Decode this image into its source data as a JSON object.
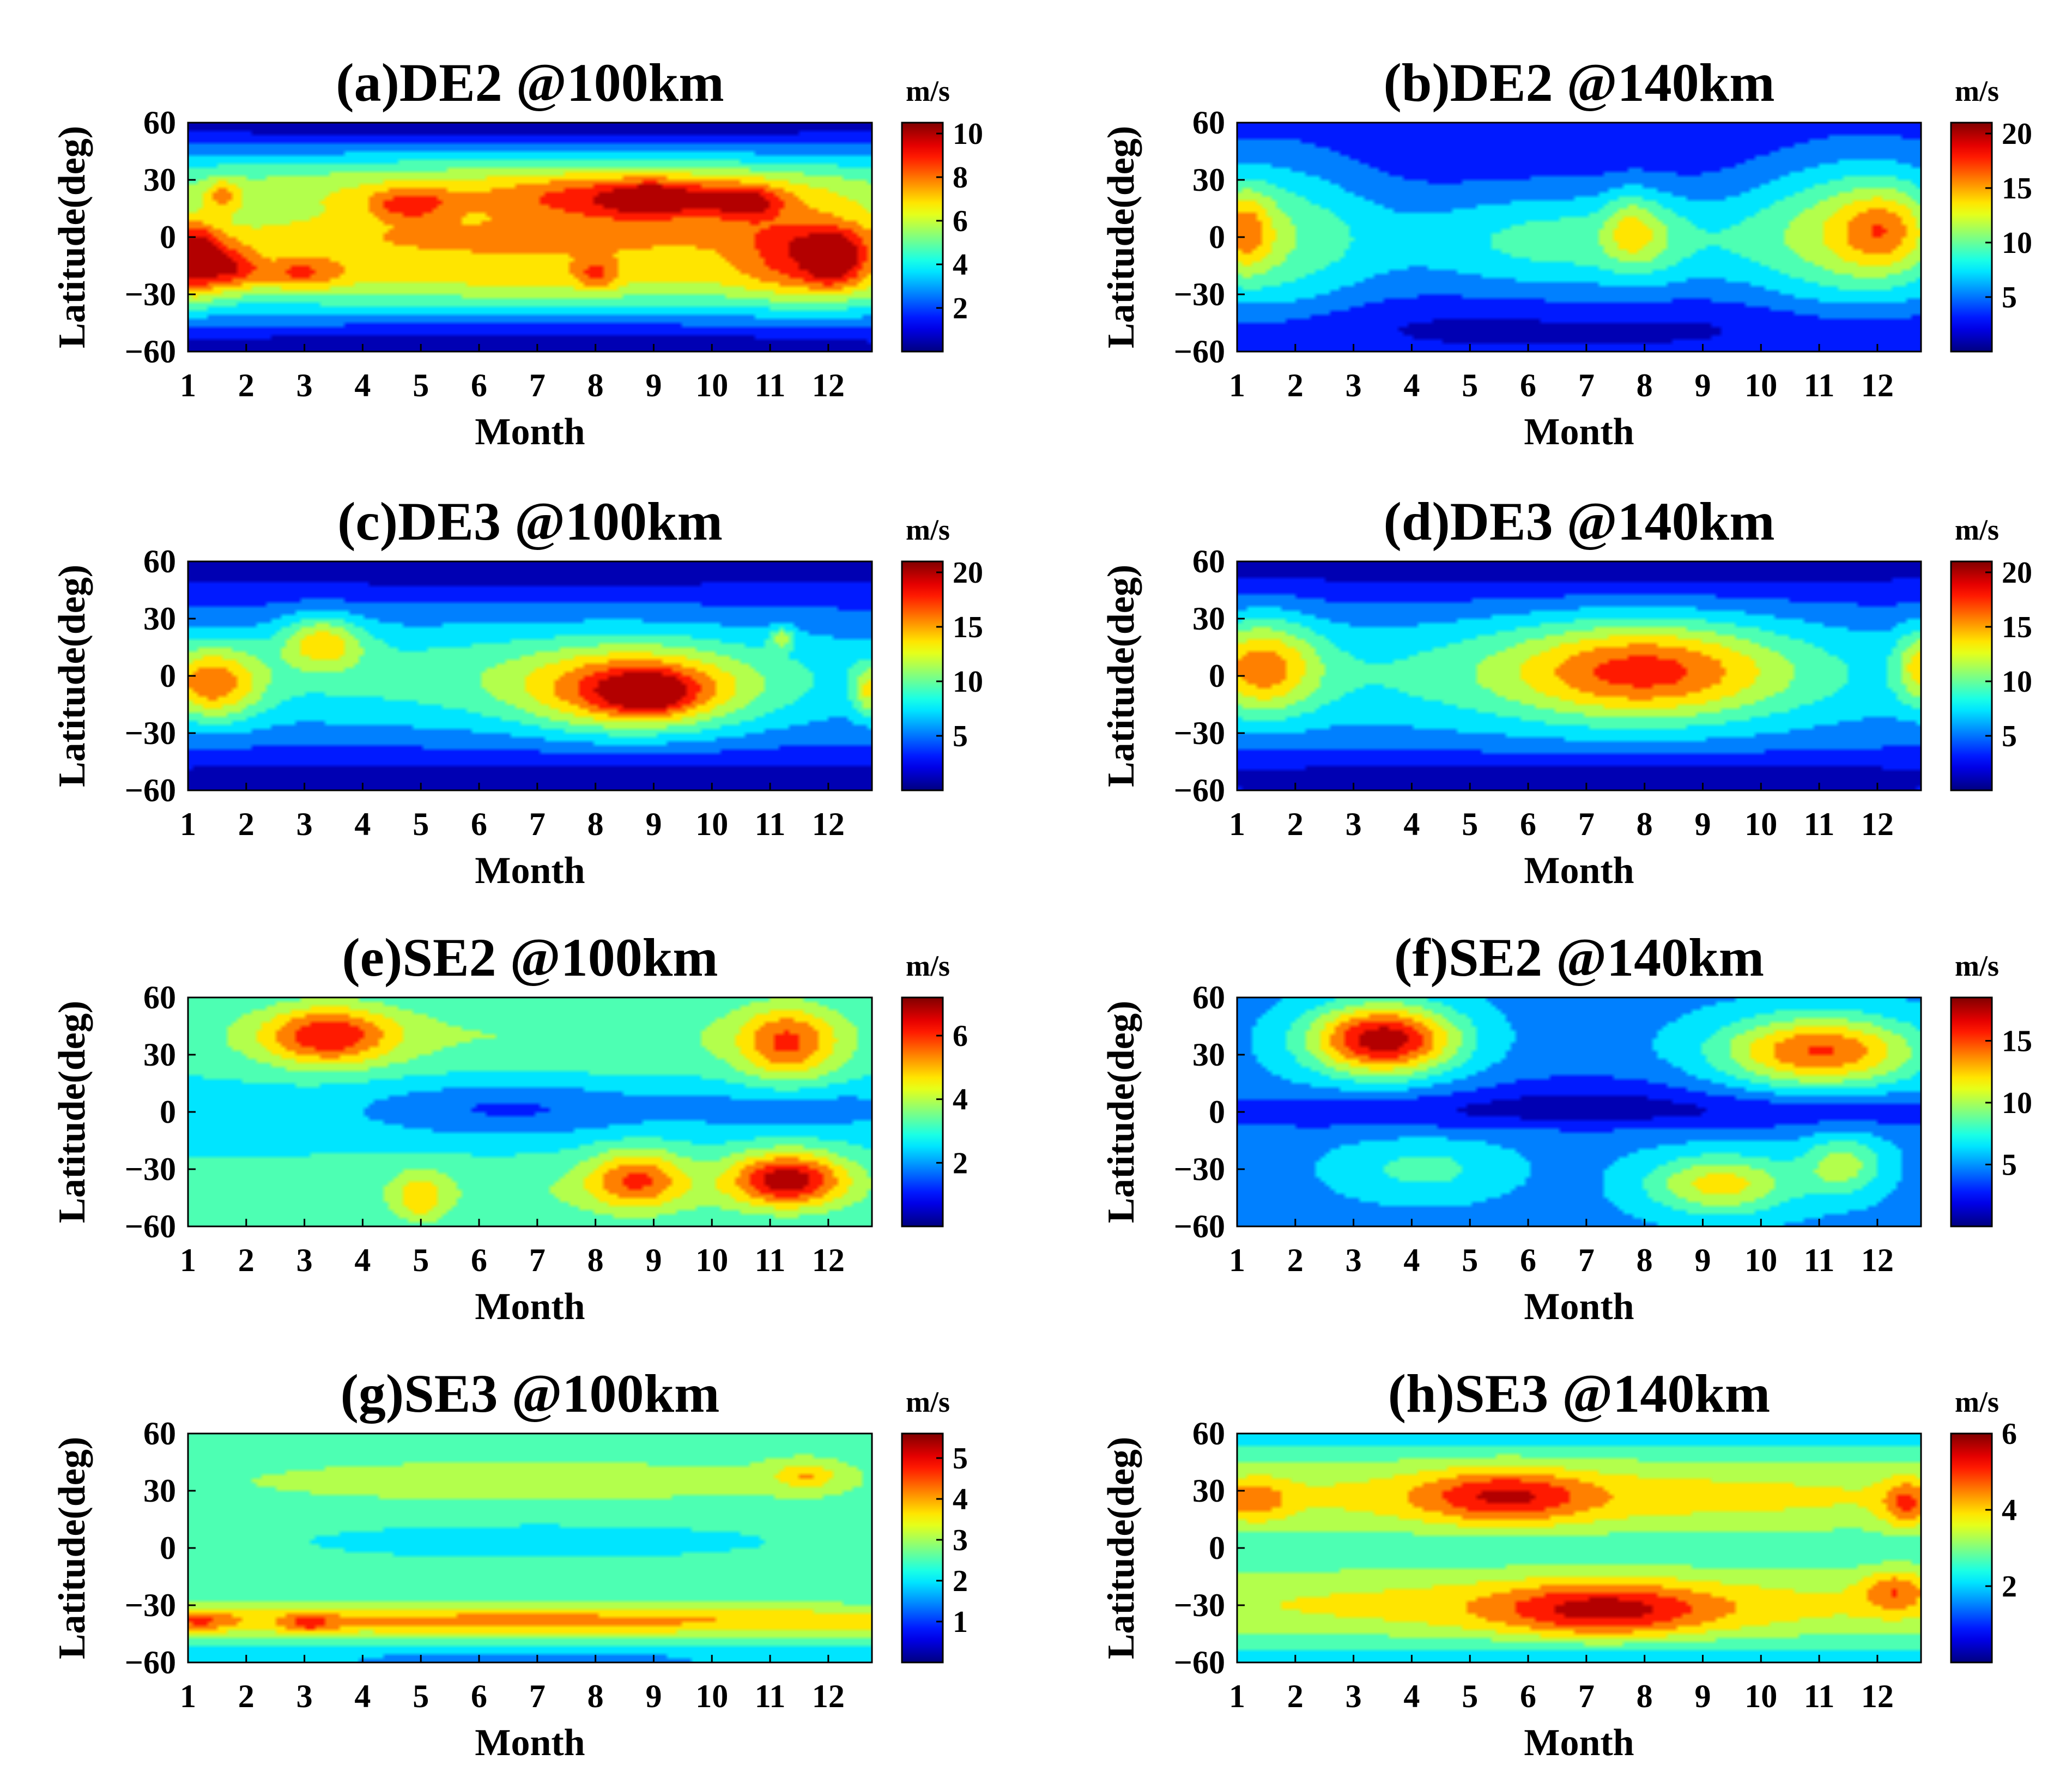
{
  "shared": {
    "xlabel": "Month",
    "ylabel": "Latitude(deg)",
    "unit": "m/s",
    "x_ticks": [
      "1",
      "2",
      "3",
      "4",
      "5",
      "6",
      "7",
      "8",
      "9",
      "10",
      "11",
      "12"
    ],
    "y_ticks": [
      "60",
      "30",
      "0",
      "−30",
      "−60"
    ],
    "colormap": "jet"
  },
  "chart_data": [
    {
      "type": "heatmap",
      "title": "(a)DE2 @100km",
      "xlabel": "Month",
      "ylabel": "Latitude(deg)",
      "xlim": [
        1,
        12.75
      ],
      "ylim": [
        -60,
        60
      ],
      "colorbar": {
        "label": "m/s",
        "range": [
          0,
          10.5
        ],
        "ticks": [
          "2",
          "4",
          "6",
          "8",
          "10"
        ]
      },
      "background": 2.5,
      "blobs": [
        {
          "x": 6.8,
          "y": 22,
          "sx": 6.5,
          "sy": 16,
          "v": 4.2
        },
        {
          "x": 6.8,
          "y": -18,
          "sx": 6.5,
          "sy": 15,
          "v": 4.2
        },
        {
          "x": 6.8,
          "y": 0,
          "sx": 6.5,
          "sy": 7,
          "v": 1.5
        },
        {
          "x": 6.8,
          "y": 62,
          "sx": 7,
          "sy": 12,
          "v": -2.8
        },
        {
          "x": 6.8,
          "y": -62,
          "sx": 7,
          "sy": 12,
          "v": -2.8
        },
        {
          "x": 1.1,
          "y": -12,
          "sx": 0.35,
          "sy": 13,
          "v": 5.5
        },
        {
          "x": 1.8,
          "y": -16,
          "sx": 0.3,
          "sy": 8,
          "v": 2.8
        },
        {
          "x": 1.6,
          "y": 22,
          "sx": 0.2,
          "sy": 6,
          "v": 2.2
        },
        {
          "x": 2.9,
          "y": -19,
          "sx": 0.55,
          "sy": 6,
          "v": 2.5
        },
        {
          "x": 4.8,
          "y": 17,
          "sx": 0.5,
          "sy": 6,
          "v": 2.5
        },
        {
          "x": 8.9,
          "y": 20,
          "sx": 1.6,
          "sy": 9,
          "v": 3.0
        },
        {
          "x": 9.0,
          "y": 20,
          "sx": 0.45,
          "sy": 5,
          "v": 2.5
        },
        {
          "x": 10.6,
          "y": 18,
          "sx": 0.4,
          "sy": 6,
          "v": 2.5
        },
        {
          "x": 11.8,
          "y": -10,
          "sx": 0.9,
          "sy": 16,
          "v": 3.5
        },
        {
          "x": 12.1,
          "y": -12,
          "sx": 0.3,
          "sy": 9,
          "v": 2.5
        },
        {
          "x": 8.0,
          "y": -20,
          "sx": 0.25,
          "sy": 6,
          "v": 2.0
        }
      ]
    },
    {
      "type": "heatmap",
      "title": "(b)DE2 @140km",
      "xlabel": "Month",
      "ylabel": "Latitude(deg)",
      "xlim": [
        1,
        12.75
      ],
      "ylim": [
        -60,
        60
      ],
      "colorbar": {
        "label": "m/s",
        "range": [
          0,
          21
        ],
        "ticks": [
          "5",
          "10",
          "15",
          "20"
        ]
      },
      "background": 2.5,
      "blobs": [
        {
          "x": 1.5,
          "y": 0,
          "sx": 1.3,
          "sy": 30,
          "v": 7.5
        },
        {
          "x": 1.1,
          "y": 4,
          "sx": 0.35,
          "sy": 16,
          "v": 6.5
        },
        {
          "x": 11.8,
          "y": 2,
          "sx": 1.4,
          "sy": 28,
          "v": 9.5
        },
        {
          "x": 12.1,
          "y": 4,
          "sx": 0.5,
          "sy": 14,
          "v": 4.5
        },
        {
          "x": 6.8,
          "y": -2,
          "sx": 2.4,
          "sy": 20,
          "v": 7.0
        },
        {
          "x": 7.7,
          "y": 5,
          "sx": 0.3,
          "sy": 14,
          "v": 3.5
        },
        {
          "x": 8.1,
          "y": 2,
          "sx": 0.4,
          "sy": 16,
          "v": 2.5
        },
        {
          "x": 6.8,
          "y": -46,
          "sx": 7,
          "sy": 8,
          "v": -1.2
        }
      ]
    },
    {
      "type": "heatmap",
      "title": "(c)DE3 @100km",
      "xlabel": "Month",
      "ylabel": "Latitude(deg)",
      "xlim": [
        1,
        12.75
      ],
      "ylim": [
        -60,
        60
      ],
      "colorbar": {
        "label": "m/s",
        "range": [
          0,
          21
        ],
        "ticks": [
          "5",
          "10",
          "15",
          "20"
        ]
      },
      "background": 3,
      "blobs": [
        {
          "x": 6.8,
          "y": 0,
          "sx": 6.5,
          "sy": 24,
          "v": 6.5
        },
        {
          "x": 6.8,
          "y": 62,
          "sx": 7,
          "sy": 14,
          "v": -3
        },
        {
          "x": 6.8,
          "y": -58,
          "sx": 7,
          "sy": 12,
          "v": -3
        },
        {
          "x": 1.4,
          "y": -4,
          "sx": 0.6,
          "sy": 14,
          "v": 9
        },
        {
          "x": 3.3,
          "y": 18,
          "sx": 0.5,
          "sy": 10,
          "v": 7
        },
        {
          "x": 8.7,
          "y": -8,
          "sx": 1.3,
          "sy": 15,
          "v": 10
        },
        {
          "x": 8.9,
          "y": -9,
          "sx": 0.5,
          "sy": 7,
          "v": 6
        },
        {
          "x": 12.7,
          "y": -8,
          "sx": 0.2,
          "sy": 10,
          "v": 6
        },
        {
          "x": 11.2,
          "y": 20,
          "sx": 0.15,
          "sy": 4,
          "v": 5
        }
      ]
    },
    {
      "type": "heatmap",
      "title": "(d)DE3 @140km",
      "xlabel": "Month",
      "ylabel": "Latitude(deg)",
      "xlim": [
        1,
        12.75
      ],
      "ylim": [
        -60,
        60
      ],
      "colorbar": {
        "label": "m/s",
        "range": [
          0,
          21
        ],
        "ticks": [
          "5",
          "10",
          "15",
          "20"
        ]
      },
      "background": 3,
      "blobs": [
        {
          "x": 6.8,
          "y": 0,
          "sx": 6.5,
          "sy": 26,
          "v": 6
        },
        {
          "x": 6.8,
          "y": 62,
          "sx": 7,
          "sy": 14,
          "v": -3
        },
        {
          "x": 6.8,
          "y": -52,
          "sx": 7,
          "sy": 8,
          "v": -2.5
        },
        {
          "x": 1.4,
          "y": 5,
          "sx": 0.7,
          "sy": 18,
          "v": 9
        },
        {
          "x": 8.0,
          "y": 3,
          "sx": 1.6,
          "sy": 18,
          "v": 9
        },
        {
          "x": 12.75,
          "y": 5,
          "sx": 0.3,
          "sy": 14,
          "v": 7
        }
      ]
    },
    {
      "type": "heatmap",
      "title": "(e)SE2 @100km",
      "xlabel": "Month",
      "ylabel": "Latitude(deg)",
      "xlim": [
        1,
        12.75
      ],
      "ylim": [
        -60,
        60
      ],
      "colorbar": {
        "label": "m/s",
        "range": [
          0,
          7.2
        ],
        "ticks": [
          "2",
          "4",
          "6"
        ]
      },
      "background": 2.6,
      "blobs": [
        {
          "x": 6.8,
          "y": 40,
          "sx": 6.5,
          "sy": 16,
          "v": 1.0
        },
        {
          "x": 6.8,
          "y": -42,
          "sx": 6.5,
          "sy": 14,
          "v": 0.9
        },
        {
          "x": 6.5,
          "y": 2,
          "sx": 1.8,
          "sy": 10,
          "v": -1.3
        },
        {
          "x": 11.5,
          "y": 2,
          "sx": 1.5,
          "sy": 8,
          "v": -0.9
        },
        {
          "x": 3.4,
          "y": 40,
          "sx": 0.8,
          "sy": 11,
          "v": 3
        },
        {
          "x": 11.3,
          "y": 36,
          "sx": 0.6,
          "sy": 14,
          "v": 2.6
        },
        {
          "x": 8.7,
          "y": -35,
          "sx": 0.6,
          "sy": 11,
          "v": 2.6
        },
        {
          "x": 11.3,
          "y": -35,
          "sx": 0.7,
          "sy": 10,
          "v": 3.8
        },
        {
          "x": 5.0,
          "y": -45,
          "sx": 0.3,
          "sy": 10,
          "v": 1.5
        }
      ]
    },
    {
      "type": "heatmap",
      "title": "(f)SE2 @140km",
      "xlabel": "Month",
      "ylabel": "Latitude(deg)",
      "xlim": [
        1,
        12.75
      ],
      "ylim": [
        -60,
        60
      ],
      "colorbar": {
        "label": "m/s",
        "range": [
          0,
          18.5
        ],
        "ticks": [
          "5",
          "10",
          "15"
        ]
      },
      "background": 5,
      "blobs": [
        {
          "x": 6.8,
          "y": 0,
          "sx": 7,
          "sy": 7,
          "v": -3
        },
        {
          "x": 7.0,
          "y": 10,
          "sx": 1.6,
          "sy": 9,
          "v": -2
        },
        {
          "x": 3.5,
          "y": 38,
          "sx": 0.9,
          "sy": 13,
          "v": 13
        },
        {
          "x": 11.0,
          "y": 32,
          "sx": 1.2,
          "sy": 13,
          "v": 10
        },
        {
          "x": 9.3,
          "y": -38,
          "sx": 0.9,
          "sy": 11,
          "v": 7
        },
        {
          "x": 11.4,
          "y": -28,
          "sx": 0.5,
          "sy": 11,
          "v": 5
        },
        {
          "x": 4.2,
          "y": -30,
          "sx": 1,
          "sy": 11,
          "v": 3
        }
      ]
    },
    {
      "type": "heatmap",
      "title": "(g)SE3 @100km",
      "xlabel": "Month",
      "ylabel": "Latitude(deg)",
      "xlim": [
        1,
        12.75
      ],
      "ylim": [
        -60,
        60
      ],
      "colorbar": {
        "label": "m/s",
        "range": [
          0,
          5.6
        ],
        "ticks": [
          "1",
          "2",
          "3",
          "4",
          "5"
        ]
      },
      "background": 2.4,
      "blobs": [
        {
          "x": 6.8,
          "y": 35,
          "sx": 7,
          "sy": 15,
          "v": 0.5
        },
        {
          "x": 6.8,
          "y": -38,
          "sx": 7,
          "sy": 6,
          "v": 1.7
        },
        {
          "x": 7.0,
          "y": 5,
          "sx": 3,
          "sy": 7,
          "v": -0.5
        },
        {
          "x": 1.2,
          "y": -38,
          "sx": 0.4,
          "sy": 4,
          "v": 1.0
        },
        {
          "x": 3.1,
          "y": -40,
          "sx": 0.3,
          "sy": 4,
          "v": 1.0
        },
        {
          "x": 11.6,
          "y": 38,
          "sx": 0.4,
          "sy": 5,
          "v": 1.2
        },
        {
          "x": 6.8,
          "y": -58,
          "sx": 7,
          "sy": 5,
          "v": -0.8
        }
      ]
    },
    {
      "type": "heatmap",
      "title": "(h)SE3 @140km",
      "xlabel": "Month",
      "ylabel": "Latitude(deg)",
      "xlim": [
        1,
        12.75
      ],
      "ylim": [
        -60,
        60
      ],
      "colorbar": {
        "label": "m/s",
        "range": [
          0,
          6
        ],
        "ticks": [
          "2",
          "4",
          "6"
        ]
      },
      "background": 2.6,
      "blobs": [
        {
          "x": 6.8,
          "y": 27,
          "sx": 7,
          "sy": 13,
          "v": 1.3
        },
        {
          "x": 6.8,
          "y": -30,
          "sx": 7,
          "sy": 13,
          "v": 1.3
        },
        {
          "x": 6.8,
          "y": 0,
          "sx": 7,
          "sy": 6,
          "v": -0.2
        },
        {
          "x": 5.6,
          "y": 27,
          "sx": 1.0,
          "sy": 10,
          "v": 1.7
        },
        {
          "x": 1.3,
          "y": 25,
          "sx": 0.4,
          "sy": 8,
          "v": 1.2
        },
        {
          "x": 12.5,
          "y": 23,
          "sx": 0.3,
          "sy": 9,
          "v": 1.5
        },
        {
          "x": 7.3,
          "y": -33,
          "sx": 1.3,
          "sy": 10,
          "v": 1.9
        },
        {
          "x": 12.3,
          "y": -22,
          "sx": 0.4,
          "sy": 8,
          "v": 1.4
        },
        {
          "x": 6.8,
          "y": 62,
          "sx": 7,
          "sy": 7,
          "v": -0.8
        },
        {
          "x": 6.8,
          "y": -60,
          "sx": 7,
          "sy": 8,
          "v": -0.8
        }
      ]
    }
  ]
}
